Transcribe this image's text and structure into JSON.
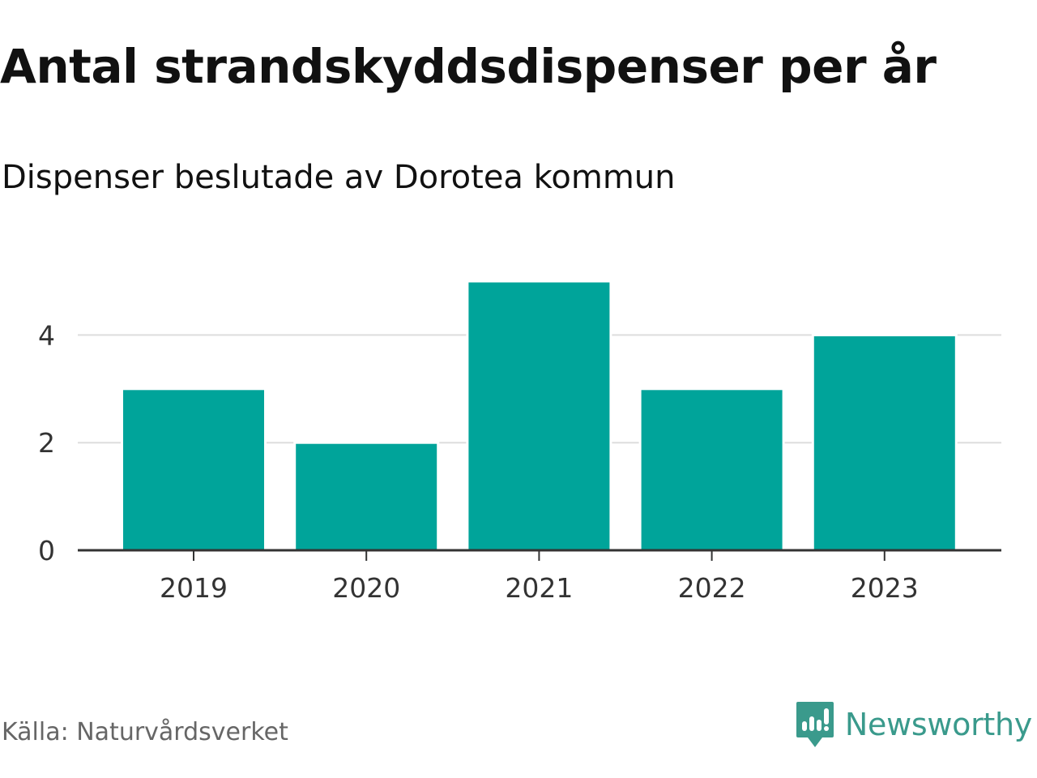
{
  "header": {
    "title": "Antal strandskyddsdispenser per år",
    "subtitle": "Dispenser beslutade av Dorotea kommun"
  },
  "footer": {
    "source": "Källa: Naturvårdsverket",
    "brand": "Newsworthy"
  },
  "colors": {
    "bar": "#00a49a",
    "grid": "#dddddd",
    "axis": "#333333",
    "brand": "#3a9a8c"
  },
  "chart_data": {
    "type": "bar",
    "title": "Antal strandskyddsdispenser per år",
    "subtitle": "Dispenser beslutade av Dorotea kommun",
    "xlabel": "",
    "ylabel": "",
    "categories": [
      "2019",
      "2020",
      "2021",
      "2022",
      "2023"
    ],
    "values": [
      3,
      2,
      5,
      3,
      4
    ],
    "ylim": [
      0,
      5
    ],
    "yticks": [
      0,
      2,
      4
    ],
    "grid": true,
    "legend": "none"
  }
}
